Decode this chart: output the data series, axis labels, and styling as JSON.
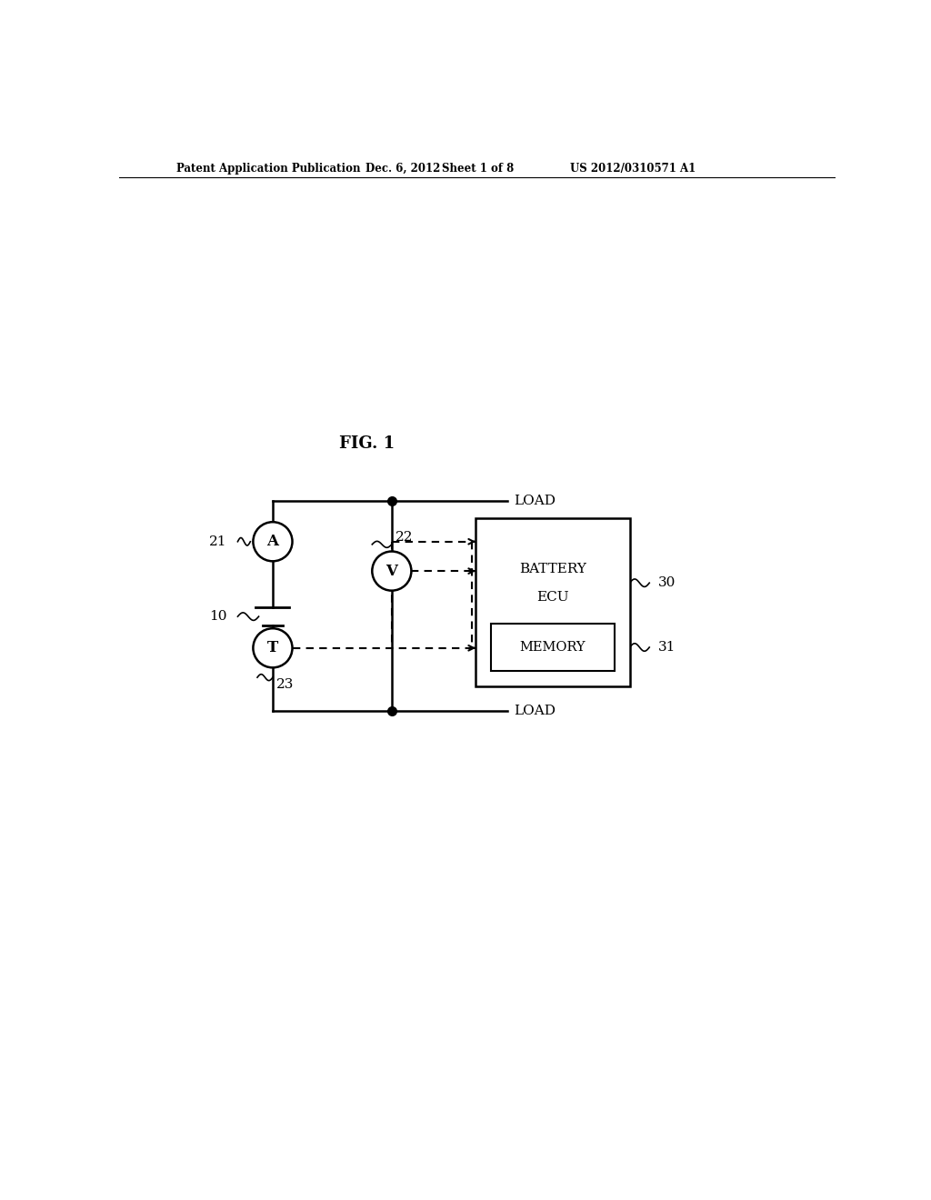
{
  "bg_color": "#ffffff",
  "header_text": "Patent Application Publication",
  "header_date": "Dec. 6, 2012",
  "header_sheet": "Sheet 1 of 8",
  "header_patent": "US 2012/0310571 A1",
  "fig_label": "FIG. 1",
  "label_10": "10",
  "label_21": "21",
  "label_22": "22",
  "label_23": "23",
  "label_30": "30",
  "label_31": "31",
  "label_load_top": "LOAD",
  "label_load_bot": "LOAD",
  "label_battery_ecu_line1": "BATTERY",
  "label_battery_ecu_line2": "ECU",
  "label_memory": "MEMORY",
  "circle_A": "A",
  "circle_V": "V",
  "circle_T": "T"
}
